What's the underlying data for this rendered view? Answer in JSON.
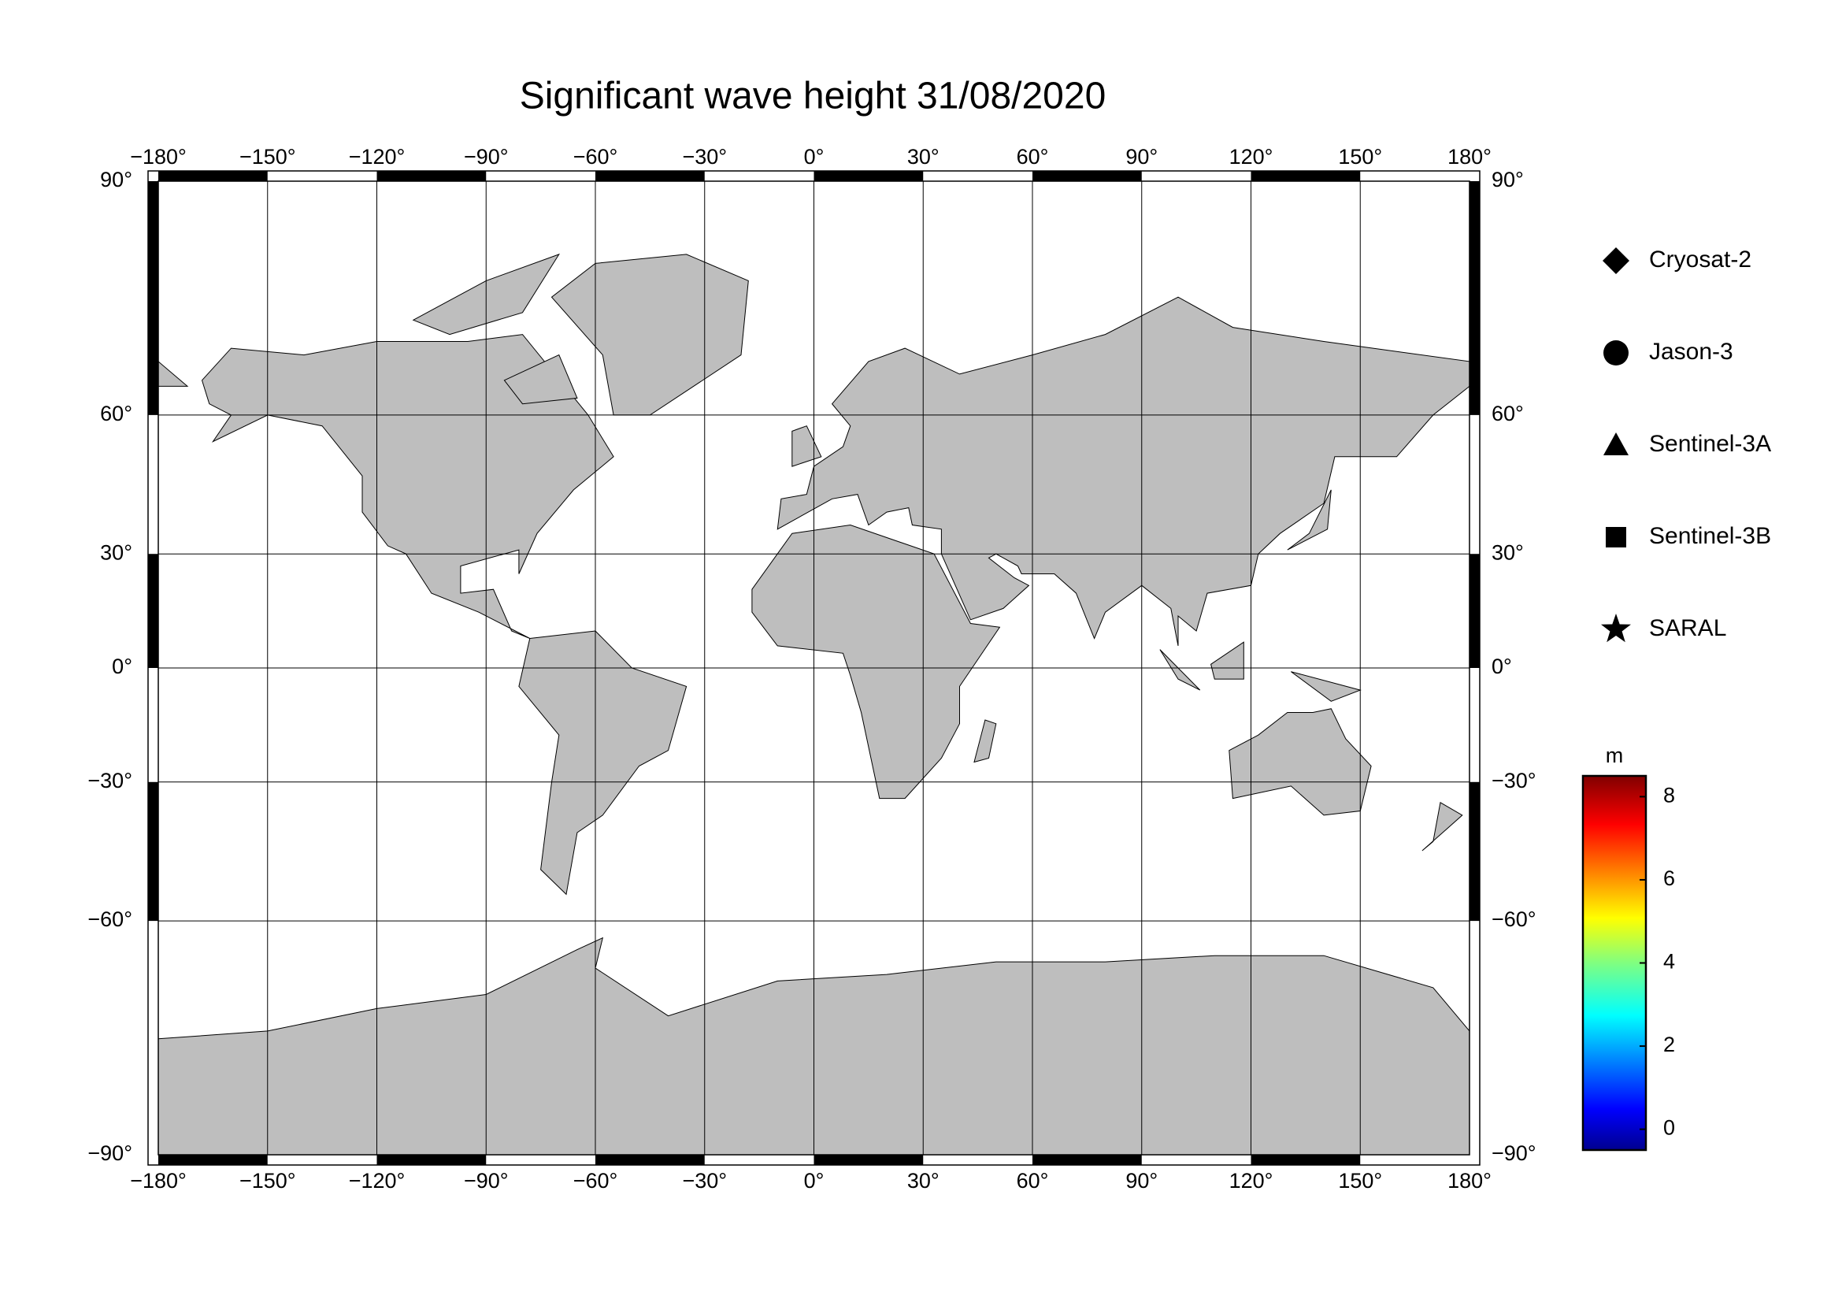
{
  "title": "Significant wave height 31/08/2020",
  "map": {
    "projection": "miller",
    "xlim": [
      -180,
      180
    ],
    "ylim": [
      -90,
      90
    ],
    "lon_ticks": [
      {
        "value": -180,
        "label": "−180°"
      },
      {
        "value": -150,
        "label": "−150°"
      },
      {
        "value": -120,
        "label": "−120°"
      },
      {
        "value": -90,
        "label": "−90°"
      },
      {
        "value": -60,
        "label": "−60°"
      },
      {
        "value": -30,
        "label": "−30°"
      },
      {
        "value": 0,
        "label": "0°"
      },
      {
        "value": 30,
        "label": "30°"
      },
      {
        "value": 60,
        "label": "60°"
      },
      {
        "value": 90,
        "label": "90°"
      },
      {
        "value": 120,
        "label": "120°"
      },
      {
        "value": 150,
        "label": "150°"
      },
      {
        "value": 180,
        "label": "180°"
      }
    ],
    "lat_ticks": [
      {
        "value": 90,
        "label": "90°"
      },
      {
        "value": 60,
        "label": "60°"
      },
      {
        "value": 30,
        "label": "30°"
      },
      {
        "value": 0,
        "label": "0°"
      },
      {
        "value": -30,
        "label": "−30°"
      },
      {
        "value": -60,
        "label": "−60°"
      },
      {
        "value": -90,
        "label": "−90°"
      }
    ],
    "grid": true,
    "land_color": "#bebebe"
  },
  "legend": [
    {
      "marker": "diamond",
      "label": "Cryosat-2"
    },
    {
      "marker": "circle",
      "label": "Jason-3"
    },
    {
      "marker": "triangle",
      "label": "Sentinel-3A"
    },
    {
      "marker": "square",
      "label": "Sentinel-3B"
    },
    {
      "marker": "star",
      "label": "SARAL"
    }
  ],
  "colorbar": {
    "unit": "m",
    "colormap": "jet",
    "clim": [
      -0.5,
      8.5
    ],
    "ticks": [
      0,
      2,
      4,
      6,
      8
    ]
  }
}
